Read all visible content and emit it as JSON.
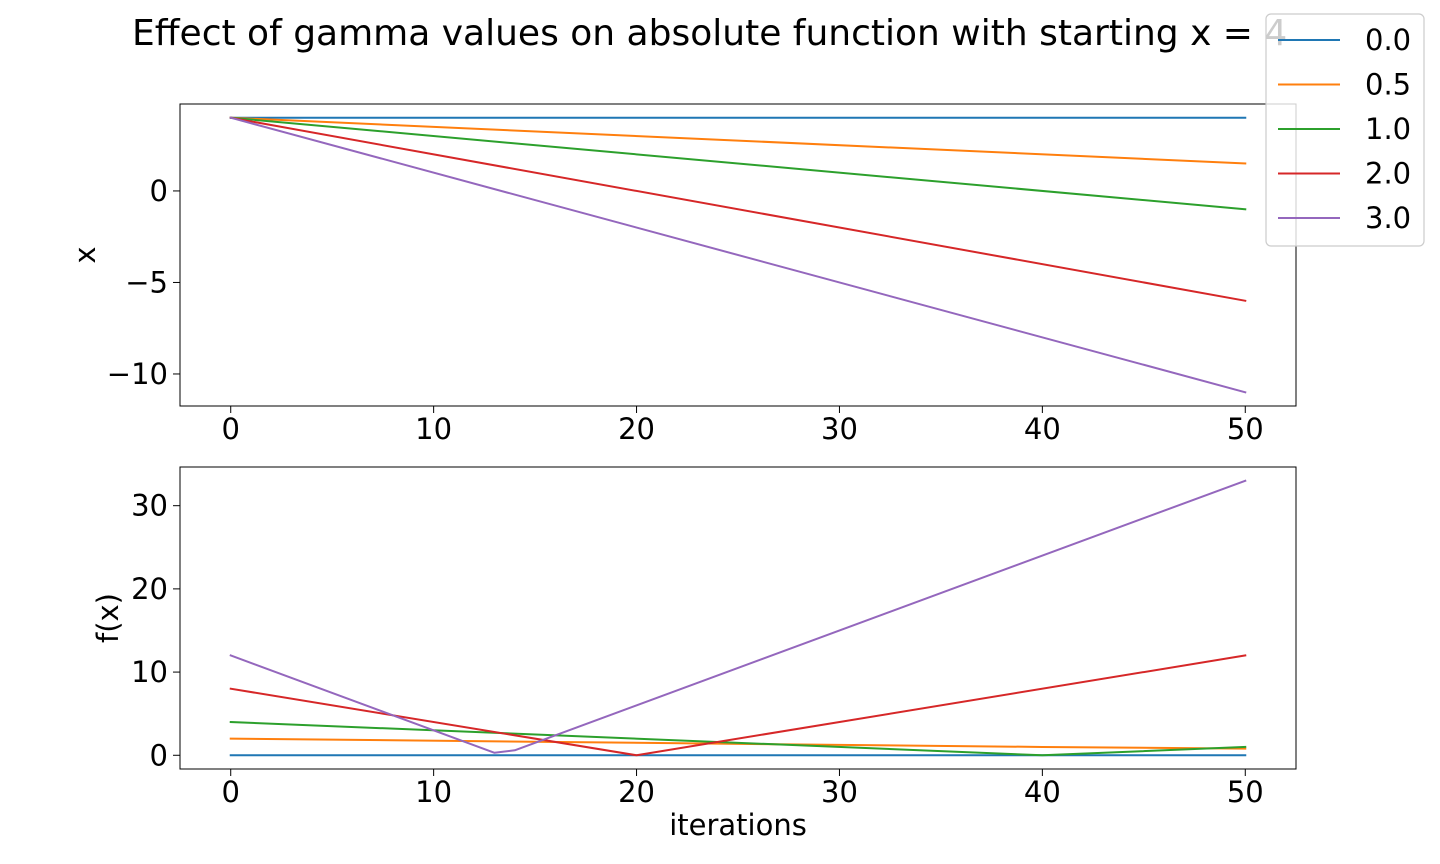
{
  "figure": {
    "title": "Effect of gamma values on absolute function with starting x = 4"
  },
  "legend": {
    "placement": "top-right (outside axes)",
    "entries": [
      "0.0",
      "0.5",
      "1.0",
      "2.0",
      "3.0"
    ]
  },
  "colors": {
    "0.0": "#1f77b4",
    "0.5": "#ff7f0e",
    "1.0": "#2ca02c",
    "2.0": "#d62728",
    "3.0": "#9467bd"
  },
  "chart_data": [
    {
      "type": "line",
      "title": "",
      "xlabel": "",
      "ylabel": "x",
      "xlim": [
        -2.5,
        52.5
      ],
      "ylim": [
        -11.75,
        4.75
      ],
      "xticks": [
        0,
        10,
        20,
        30,
        40,
        50
      ],
      "yticks": [
        0,
        -5,
        -10
      ],
      "ytick_labels": [
        "0",
        "−5",
        "−10"
      ],
      "grid": false,
      "series": [
        {
          "name": "0.0",
          "color": "#1f77b4",
          "x": [
            0,
            50
          ],
          "y": [
            4,
            4
          ]
        },
        {
          "name": "0.5",
          "color": "#ff7f0e",
          "x": [
            0,
            50
          ],
          "y": [
            4,
            1.5
          ]
        },
        {
          "name": "1.0",
          "color": "#2ca02c",
          "x": [
            0,
            50
          ],
          "y": [
            4,
            -1
          ]
        },
        {
          "name": "2.0",
          "color": "#d62728",
          "x": [
            0,
            50
          ],
          "y": [
            4,
            -6
          ]
        },
        {
          "name": "3.0",
          "color": "#9467bd",
          "x": [
            0,
            50
          ],
          "y": [
            4,
            -11
          ]
        }
      ]
    },
    {
      "type": "line",
      "title": "",
      "xlabel": "iterations",
      "ylabel": "f(x)",
      "xlim": [
        -2.5,
        52.5
      ],
      "ylim": [
        -1.65,
        34.65
      ],
      "xticks": [
        0,
        10,
        20,
        30,
        40,
        50
      ],
      "yticks": [
        0,
        10,
        20,
        30
      ],
      "ytick_labels": [
        "0",
        "10",
        "20",
        "30"
      ],
      "grid": false,
      "series": [
        {
          "name": "0.0",
          "color": "#1f77b4",
          "x": [
            0,
            50
          ],
          "y": [
            0,
            0
          ]
        },
        {
          "name": "0.5",
          "color": "#ff7f0e",
          "x": [
            0,
            40,
            50
          ],
          "y": [
            2,
            1,
            0.8
          ]
        },
        {
          "name": "1.0",
          "color": "#2ca02c",
          "x": [
            0,
            40,
            50
          ],
          "y": [
            4,
            0,
            1
          ]
        },
        {
          "name": "2.0",
          "color": "#d62728",
          "x": [
            0,
            20,
            50
          ],
          "y": [
            8,
            0,
            12
          ]
        },
        {
          "name": "3.0",
          "color": "#9467bd",
          "x": [
            0,
            13,
            14,
            50
          ],
          "y": [
            12,
            0.3,
            0.6,
            33
          ]
        }
      ]
    }
  ]
}
